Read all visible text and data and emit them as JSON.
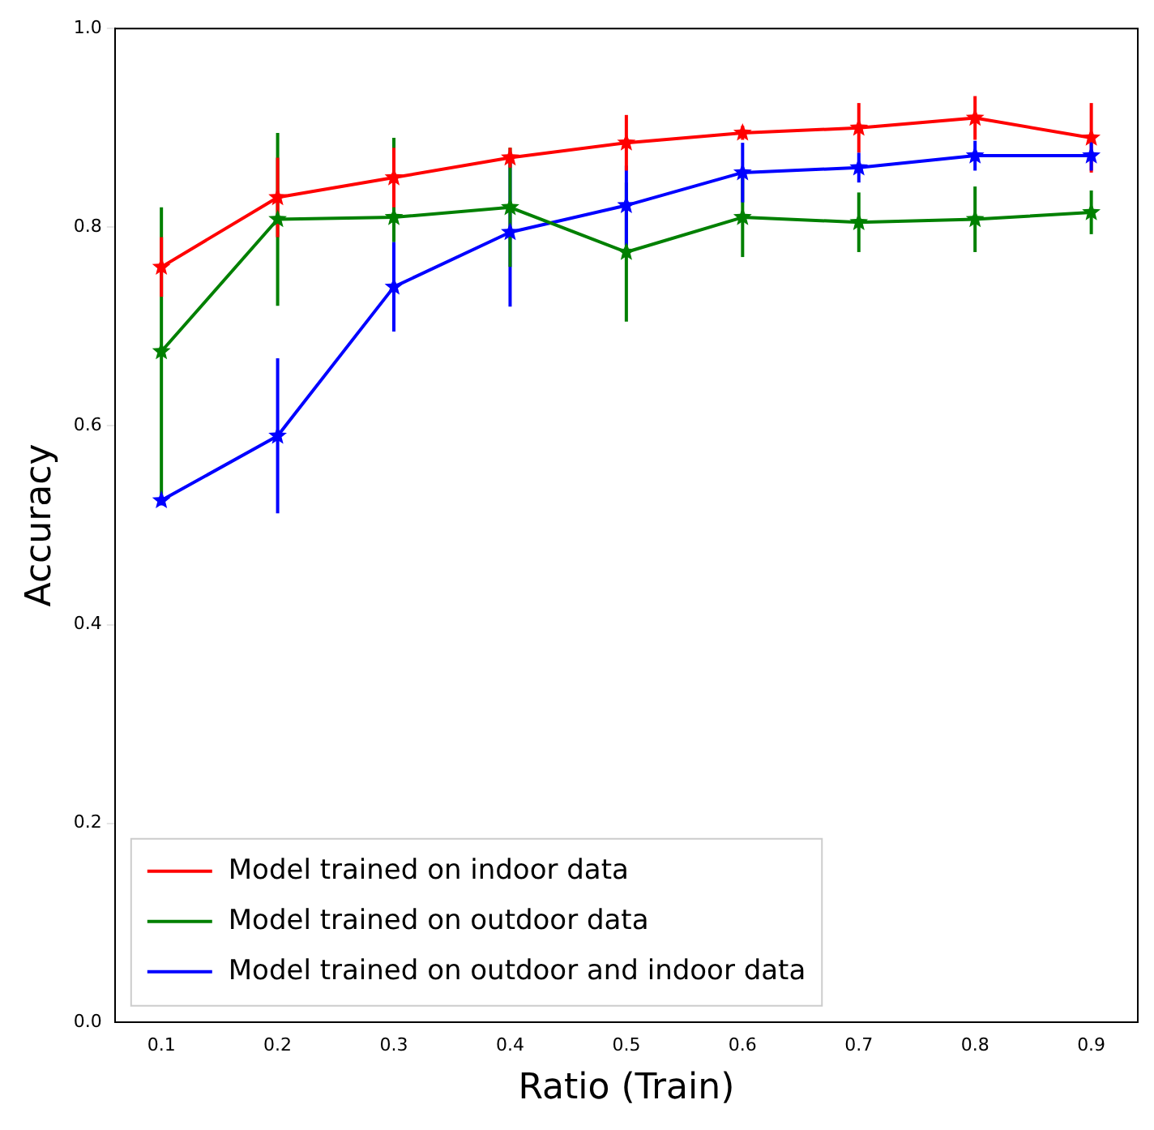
{
  "chart_data": {
    "type": "line",
    "xlabel": "Ratio (Train)",
    "ylabel": "Accuracy",
    "x": [
      0.1,
      0.2,
      0.3,
      0.4,
      0.5,
      0.6,
      0.7,
      0.8,
      0.9
    ],
    "series": [
      {
        "name": "Model trained on indoor data",
        "color": "#ff0000",
        "values": [
          0.76,
          0.83,
          0.85,
          0.87,
          0.885,
          0.895,
          0.9,
          0.91,
          0.89
        ],
        "errors": [
          0.03,
          0.04,
          0.03,
          0.01,
          0.028,
          0.007,
          0.025,
          0.022,
          0.035
        ]
      },
      {
        "name": "Model trained on outdoor data",
        "color": "#008000",
        "values": [
          0.675,
          0.808,
          0.81,
          0.82,
          0.775,
          0.81,
          0.805,
          0.808,
          0.815
        ],
        "errors": [
          0.145,
          0.087,
          [
            0.785,
            0.89
          ],
          0.06,
          0.07,
          0.04,
          0.03,
          0.033,
          0.022
        ]
      },
      {
        "name": "Model trained on outdoor and indoor data",
        "color": "#0000ff",
        "values": [
          0.525,
          0.59,
          0.74,
          0.795,
          0.822,
          0.855,
          0.86,
          0.872,
          0.872
        ],
        "errors": [
          0.005,
          0.078,
          0.045,
          0.075,
          0.04,
          0.03,
          0.015,
          0.015,
          0.015
        ]
      }
    ],
    "xlim": [
      0.06,
      0.94
    ],
    "xticks": [
      0.1,
      0.2,
      0.3,
      0.4,
      0.5,
      0.6,
      0.7,
      0.8,
      0.9
    ],
    "ylim": [
      0,
      1
    ],
    "yticks": [
      {
        "value": 0,
        "label": "0.0"
      },
      {
        "value": 0.2,
        "label": "0.2"
      },
      {
        "value": 0.4,
        "label": "0.4"
      },
      {
        "value": 0.6,
        "label": "0.6"
      },
      {
        "value": 0.8,
        "label": "0.8"
      },
      {
        "value": 1,
        "label": "1.0"
      }
    ],
    "legend": "bottom left",
    "marker": "star",
    "line_style": "solid",
    "grid": false
  }
}
